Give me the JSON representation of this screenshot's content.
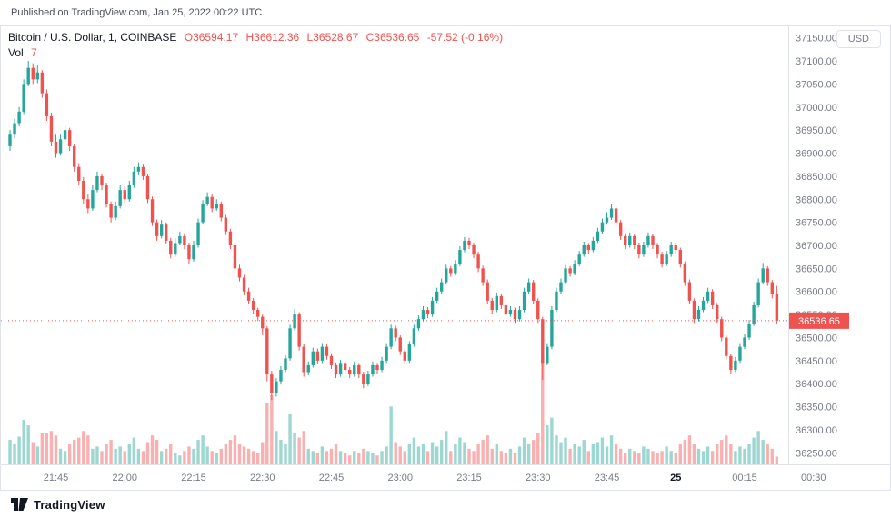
{
  "header": {
    "published": "Published on TradingView.com, Jan 25, 2022 00:22 UTC"
  },
  "legend": {
    "symbol_line": "Bitcoin / U.S. Dollar, 1, COINBASE",
    "o": "O36594.17",
    "h": "H36612.36",
    "l": "L36528.67",
    "c": "C36536.65",
    "change": "-57.52 (-0.16%)",
    "vol_label": "Vol",
    "vol_value": "7"
  },
  "axis": {
    "currency": "USD",
    "last_price": "36536.65"
  },
  "footer": {
    "brand": "TradingView"
  },
  "colors": {
    "up": "#26a69a",
    "down": "#ef5350",
    "vol_up": "rgba(38,166,154,0.45)",
    "vol_down": "rgba(239,83,80,0.45)",
    "axis_text": "#787b86",
    "text": "#131722",
    "border": "#e0e3eb",
    "tag": "#ef5350"
  },
  "chart_data": {
    "type": "candlestick",
    "title": "Bitcoin / U.S. Dollar, 1 minute, COINBASE",
    "legend_position": "top-left",
    "grid": false,
    "last_price": 36536.65,
    "price_axis": {
      "min": 36225,
      "max": 37175,
      "tick_labels": [
        "37150.00",
        "37100.00",
        "37050.00",
        "37000.00",
        "36950.00",
        "36900.00",
        "36850.00",
        "36800.00",
        "36750.00",
        "36700.00",
        "36650.00",
        "36600.00",
        "36550.00",
        "36500.00",
        "36450.00",
        "36400.00",
        "36350.00",
        "36300.00",
        "36250.00"
      ]
    },
    "time_axis": {
      "start": "21:35",
      "labels": [
        {
          "text": "21:45",
          "m": 10
        },
        {
          "text": "22:00",
          "m": 25
        },
        {
          "text": "22:15",
          "m": 40
        },
        {
          "text": "22:30",
          "m": 55
        },
        {
          "text": "22:45",
          "m": 70
        },
        {
          "text": "23:00",
          "m": 85
        },
        {
          "text": "23:15",
          "m": 100
        },
        {
          "text": "23:30",
          "m": 115
        },
        {
          "text": "23:45",
          "m": 130
        },
        {
          "text": "25",
          "m": 145,
          "bold": true
        },
        {
          "text": "00:15",
          "m": 160
        },
        {
          "text": "00:30",
          "m": 175
        }
      ]
    },
    "candles": [
      [
        36915,
        36950,
        36905,
        36940
      ],
      [
        36940,
        36975,
        36932,
        36965
      ],
      [
        36965,
        37000,
        36958,
        36990
      ],
      [
        36990,
        37060,
        36985,
        37050
      ],
      [
        37050,
        37100,
        37045,
        37085
      ],
      [
        37085,
        37095,
        37050,
        37060
      ],
      [
        37060,
        37090,
        37052,
        37075
      ],
      [
        37075,
        37080,
        37020,
        37030
      ],
      [
        37030,
        37038,
        36970,
        36980
      ],
      [
        36980,
        36988,
        36915,
        36925
      ],
      [
        36925,
        36940,
        36890,
        36900
      ],
      [
        36900,
        36940,
        36895,
        36930
      ],
      [
        36930,
        36960,
        36922,
        36950
      ],
      [
        36950,
        36955,
        36905,
        36915
      ],
      [
        36915,
        36920,
        36860,
        36870
      ],
      [
        36870,
        36878,
        36830,
        36840
      ],
      [
        36840,
        36848,
        36790,
        36800
      ],
      [
        36800,
        36810,
        36770,
        36780
      ],
      [
        36780,
        36830,
        36775,
        36820
      ],
      [
        36820,
        36860,
        36815,
        36850
      ],
      [
        36850,
        36856,
        36820,
        36830
      ],
      [
        36830,
        36836,
        36782,
        36790
      ],
      [
        36790,
        36795,
        36750,
        36760
      ],
      [
        36760,
        36795,
        36755,
        36785
      ],
      [
        36785,
        36830,
        36780,
        36820
      ],
      [
        36820,
        36828,
        36792,
        36800
      ],
      [
        36800,
        36840,
        36795,
        36830
      ],
      [
        36830,
        36870,
        36825,
        36860
      ],
      [
        36860,
        36880,
        36852,
        36870
      ],
      [
        36870,
        36875,
        36842,
        36850
      ],
      [
        36850,
        36855,
        36792,
        36800
      ],
      [
        36800,
        36806,
        36742,
        36750
      ],
      [
        36750,
        36756,
        36710,
        36720
      ],
      [
        36720,
        36755,
        36715,
        36745
      ],
      [
        36745,
        36750,
        36702,
        36710
      ],
      [
        36710,
        36716,
        36672,
        36680
      ],
      [
        36680,
        36715,
        36675,
        36705
      ],
      [
        36705,
        36730,
        36700,
        36720
      ],
      [
        36720,
        36726,
        36692,
        36700
      ],
      [
        36700,
        36706,
        36660,
        36670
      ],
      [
        36670,
        36710,
        36665,
        36700
      ],
      [
        36700,
        36758,
        36695,
        36750
      ],
      [
        36750,
        36798,
        36745,
        36790
      ],
      [
        36790,
        36815,
        36785,
        36805
      ],
      [
        36805,
        36810,
        36772,
        36780
      ],
      [
        36780,
        36800,
        36775,
        36790
      ],
      [
        36790,
        36795,
        36752,
        36760
      ],
      [
        36760,
        36766,
        36722,
        36730
      ],
      [
        36730,
        36736,
        36692,
        36700
      ],
      [
        36700,
        36706,
        36642,
        36650
      ],
      [
        36650,
        36658,
        36622,
        36630
      ],
      [
        36630,
        36636,
        36592,
        36600
      ],
      [
        36600,
        36608,
        36572,
        36580
      ],
      [
        36580,
        36586,
        36552,
        36560
      ],
      [
        36560,
        36565,
        36536,
        36545
      ],
      [
        36545,
        36550,
        36505,
        36520
      ],
      [
        36520,
        36525,
        36405,
        36420
      ],
      [
        36420,
        36428,
        36365,
        36380
      ],
      [
        36380,
        36412,
        36372,
        36405
      ],
      [
        36405,
        36438,
        36398,
        36430
      ],
      [
        36430,
        36462,
        36425,
        36455
      ],
      [
        36455,
        36528,
        36450,
        36520
      ],
      [
        36520,
        36562,
        36515,
        36550
      ],
      [
        36550,
        36555,
        36472,
        36480
      ],
      [
        36480,
        36486,
        36415,
        36425
      ],
      [
        36425,
        36448,
        36418,
        36440
      ],
      [
        36440,
        36478,
        36435,
        36470
      ],
      [
        36470,
        36476,
        36442,
        36450
      ],
      [
        36450,
        36488,
        36445,
        36480
      ],
      [
        36480,
        36485,
        36452,
        36460
      ],
      [
        36460,
        36466,
        36432,
        36440
      ],
      [
        36440,
        36446,
        36412,
        36420
      ],
      [
        36420,
        36452,
        36415,
        36445
      ],
      [
        36445,
        36450,
        36422,
        36430
      ],
      [
        36430,
        36436,
        36412,
        36420
      ],
      [
        36420,
        36448,
        36415,
        36440
      ],
      [
        36440,
        36445,
        36412,
        36420
      ],
      [
        36420,
        36426,
        36390,
        36400
      ],
      [
        36400,
        36428,
        36395,
        36420
      ],
      [
        36420,
        36448,
        36415,
        36440
      ],
      [
        36440,
        36445,
        36422,
        36430
      ],
      [
        36430,
        36458,
        36425,
        36450
      ],
      [
        36450,
        36488,
        36445,
        36480
      ],
      [
        36480,
        36528,
        36475,
        36520
      ],
      [
        36520,
        36526,
        36492,
        36500
      ],
      [
        36500,
        36505,
        36462,
        36470
      ],
      [
        36470,
        36476,
        36442,
        36450
      ],
      [
        36450,
        36492,
        36445,
        36485
      ],
      [
        36485,
        36528,
        36480,
        36520
      ],
      [
        36520,
        36548,
        36515,
        36540
      ],
      [
        36540,
        36568,
        36535,
        36560
      ],
      [
        36560,
        36566,
        36542,
        36550
      ],
      [
        36550,
        36588,
        36545,
        36580
      ],
      [
        36580,
        36608,
        36575,
        36600
      ],
      [
        36600,
        36628,
        36595,
        36620
      ],
      [
        36620,
        36658,
        36615,
        36650
      ],
      [
        36650,
        36655,
        36632,
        36640
      ],
      [
        36640,
        36668,
        36635,
        36660
      ],
      [
        36660,
        36698,
        36655,
        36690
      ],
      [
        36690,
        36718,
        36685,
        36710
      ],
      [
        36710,
        36716,
        36692,
        36700
      ],
      [
        36700,
        36706,
        36672,
        36680
      ],
      [
        36680,
        36686,
        36642,
        36650
      ],
      [
        36650,
        36656,
        36612,
        36620
      ],
      [
        36620,
        36626,
        36572,
        36580
      ],
      [
        36580,
        36586,
        36552,
        36560
      ],
      [
        36560,
        36598,
        36555,
        36590
      ],
      [
        36590,
        36595,
        36562,
        36570
      ],
      [
        36570,
        36576,
        36542,
        36550
      ],
      [
        36550,
        36568,
        36545,
        36560
      ],
      [
        36560,
        36565,
        36532,
        36540
      ],
      [
        36540,
        36568,
        36535,
        36560
      ],
      [
        36560,
        36608,
        36555,
        36600
      ],
      [
        36600,
        36628,
        36595,
        36620
      ],
      [
        36620,
        36625,
        36572,
        36580
      ],
      [
        36580,
        36585,
        36532,
        36540
      ],
      [
        36540,
        36545,
        36408,
        36445
      ],
      [
        36445,
        36488,
        36440,
        36480
      ],
      [
        36480,
        36568,
        36475,
        36560
      ],
      [
        36560,
        36608,
        36555,
        36600
      ],
      [
        36600,
        36628,
        36595,
        36620
      ],
      [
        36620,
        36658,
        36615,
        36650
      ],
      [
        36650,
        36655,
        36632,
        36640
      ],
      [
        36640,
        36668,
        36635,
        36660
      ],
      [
        36660,
        36688,
        36655,
        36680
      ],
      [
        36680,
        36708,
        36675,
        36700
      ],
      [
        36700,
        36705,
        36682,
        36690
      ],
      [
        36690,
        36718,
        36685,
        36710
      ],
      [
        36710,
        36738,
        36705,
        36730
      ],
      [
        36730,
        36758,
        36725,
        36750
      ],
      [
        36750,
        36772,
        36745,
        36760
      ],
      [
        36760,
        36790,
        36755,
        36780
      ],
      [
        36780,
        36785,
        36742,
        36750
      ],
      [
        36750,
        36755,
        36712,
        36720
      ],
      [
        36720,
        36726,
        36692,
        36700
      ],
      [
        36700,
        36728,
        36695,
        36720
      ],
      [
        36720,
        36725,
        36692,
        36700
      ],
      [
        36700,
        36706,
        36672,
        36680
      ],
      [
        36680,
        36708,
        36675,
        36700
      ],
      [
        36700,
        36728,
        36695,
        36720
      ],
      [
        36720,
        36725,
        36692,
        36700
      ],
      [
        36700,
        36705,
        36672,
        36680
      ],
      [
        36680,
        36686,
        36652,
        36660
      ],
      [
        36660,
        36688,
        36655,
        36680
      ],
      [
        36680,
        36708,
        36675,
        36700
      ],
      [
        36700,
        36706,
        36682,
        36690
      ],
      [
        36690,
        36695,
        36652,
        36660
      ],
      [
        36660,
        36665,
        36612,
        36620
      ],
      [
        36620,
        36626,
        36572,
        36580
      ],
      [
        36580,
        36585,
        36532,
        36540
      ],
      [
        36540,
        36568,
        36535,
        36560
      ],
      [
        36560,
        36588,
        36555,
        36580
      ],
      [
        36580,
        36608,
        36575,
        36600
      ],
      [
        36600,
        36605,
        36562,
        36570
      ],
      [
        36570,
        36575,
        36532,
        36540
      ],
      [
        36540,
        36545,
        36492,
        36500
      ],
      [
        36500,
        36505,
        36452,
        36460
      ],
      [
        36460,
        36465,
        36422,
        36430
      ],
      [
        36430,
        36458,
        36425,
        36450
      ],
      [
        36450,
        36488,
        36445,
        36480
      ],
      [
        36480,
        36508,
        36475,
        36500
      ],
      [
        36500,
        36538,
        36495,
        36530
      ],
      [
        36530,
        36578,
        36525,
        36570
      ],
      [
        36570,
        36628,
        36565,
        36620
      ],
      [
        36620,
        36662,
        36615,
        36650
      ],
      [
        36650,
        36655,
        36612,
        36620
      ],
      [
        36620,
        36625,
        36585,
        36594
      ],
      [
        36594,
        36612,
        36529,
        36536.65
      ]
    ],
    "volumes": [
      22,
      18,
      25,
      40,
      35,
      20,
      16,
      28,
      28,
      30,
      26,
      14,
      12,
      18,
      22,
      24,
      30,
      26,
      14,
      16,
      12,
      18,
      22,
      14,
      16,
      12,
      18,
      24,
      14,
      12,
      20,
      26,
      22,
      12,
      14,
      18,
      10,
      8,
      12,
      16,
      14,
      22,
      26,
      16,
      12,
      10,
      14,
      18,
      22,
      26,
      18,
      16,
      14,
      12,
      10,
      20,
      55,
      62,
      30,
      22,
      18,
      45,
      28,
      24,
      30,
      14,
      12,
      10,
      16,
      12,
      14,
      18,
      12,
      10,
      8,
      12,
      10,
      14,
      12,
      10,
      8,
      12,
      16,
      52,
      20,
      16,
      12,
      18,
      24,
      16,
      18,
      12,
      20,
      16,
      22,
      30,
      12,
      18,
      24,
      20,
      14,
      12,
      18,
      22,
      26,
      14,
      18,
      12,
      10,
      14,
      10,
      16,
      24,
      18,
      22,
      28,
      98,
      35,
      42,
      26,
      20,
      24,
      14,
      18,
      16,
      22,
      12,
      18,
      20,
      24,
      16,
      26,
      18,
      14,
      10,
      14,
      12,
      10,
      16,
      14,
      12,
      10,
      12,
      16,
      12,
      10,
      18,
      22,
      26,
      18,
      14,
      12,
      16,
      12,
      18,
      22,
      26,
      18,
      12,
      16,
      14,
      18,
      24,
      30,
      22,
      18,
      14,
      7
    ]
  }
}
